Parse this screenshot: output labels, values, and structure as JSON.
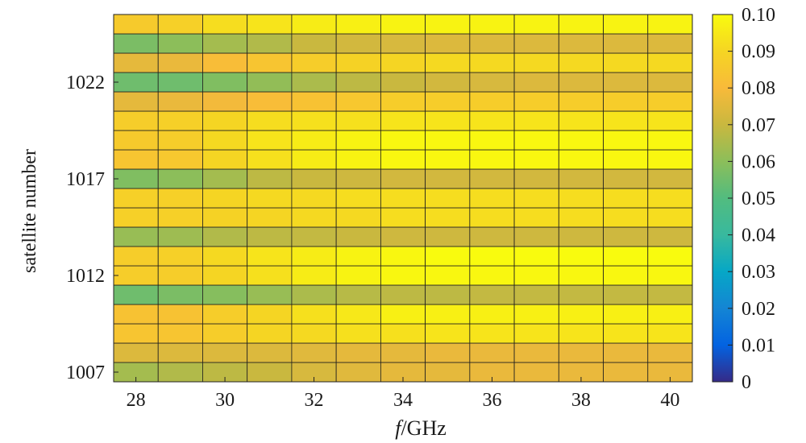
{
  "chart_data": {
    "type": "heatmap",
    "title": "",
    "xlabel_italic": "f",
    "xlabel_rest": "/GHz",
    "ylabel": "satellite number",
    "x": [
      28,
      29,
      30,
      31,
      32,
      33,
      34,
      35,
      36,
      37,
      38,
      39,
      40
    ],
    "x_ticks": [
      "28",
      "30",
      "32",
      "34",
      "36",
      "38",
      "40"
    ],
    "y": [
      1007,
      1008,
      1009,
      1010,
      1011,
      1012,
      1013,
      1014,
      1015,
      1016,
      1017,
      1018,
      1019,
      1020,
      1021,
      1022,
      1023,
      1024,
      1025
    ],
    "y_ticks": [
      "1007",
      "1012",
      "1017",
      "1022"
    ],
    "colorbar_ticks": [
      "0",
      "0.01",
      "0.02",
      "0.03",
      "0.04",
      "0.05",
      "0.06",
      "0.07",
      "0.08",
      "0.09",
      "0.10"
    ],
    "clim": [
      0,
      0.1
    ],
    "colormap": "parula",
    "values": [
      [
        0.064,
        0.066,
        0.068,
        0.07,
        0.073,
        0.075,
        0.076,
        0.076,
        0.077,
        0.077,
        0.077,
        0.077,
        0.077
      ],
      [
        0.074,
        0.074,
        0.074,
        0.074,
        0.075,
        0.076,
        0.076,
        0.077,
        0.077,
        0.077,
        0.077,
        0.077,
        0.077
      ],
      [
        0.084,
        0.084,
        0.087,
        0.09,
        0.091,
        0.093,
        0.093,
        0.094,
        0.094,
        0.094,
        0.094,
        0.094,
        0.094
      ],
      [
        0.083,
        0.083,
        0.087,
        0.09,
        0.093,
        0.095,
        0.097,
        0.097,
        0.097,
        0.097,
        0.097,
        0.097,
        0.097
      ],
      [
        0.055,
        0.057,
        0.059,
        0.062,
        0.065,
        0.067,
        0.068,
        0.068,
        0.069,
        0.069,
        0.069,
        0.069,
        0.069
      ],
      [
        0.087,
        0.087,
        0.09,
        0.093,
        0.096,
        0.098,
        0.099,
        0.099,
        0.099,
        0.099,
        0.099,
        0.099,
        0.099
      ],
      [
        0.087,
        0.088,
        0.091,
        0.094,
        0.096,
        0.098,
        0.099,
        0.1,
        0.1,
        0.1,
        0.1,
        0.1,
        0.1
      ],
      [
        0.062,
        0.063,
        0.066,
        0.068,
        0.069,
        0.07,
        0.071,
        0.071,
        0.071,
        0.071,
        0.071,
        0.071,
        0.071
      ],
      [
        0.088,
        0.088,
        0.089,
        0.09,
        0.091,
        0.091,
        0.092,
        0.092,
        0.092,
        0.092,
        0.092,
        0.092,
        0.092
      ],
      [
        0.088,
        0.088,
        0.09,
        0.091,
        0.091,
        0.092,
        0.092,
        0.092,
        0.092,
        0.092,
        0.092,
        0.092,
        0.092
      ],
      [
        0.058,
        0.06,
        0.064,
        0.068,
        0.07,
        0.071,
        0.072,
        0.072,
        0.072,
        0.072,
        0.072,
        0.072,
        0.072
      ],
      [
        0.084,
        0.085,
        0.09,
        0.093,
        0.096,
        0.098,
        0.099,
        0.099,
        0.099,
        0.099,
        0.099,
        0.099,
        0.099
      ],
      [
        0.086,
        0.087,
        0.091,
        0.094,
        0.096,
        0.098,
        0.099,
        0.099,
        0.099,
        0.099,
        0.099,
        0.099,
        0.099
      ],
      [
        0.087,
        0.088,
        0.09,
        0.092,
        0.093,
        0.093,
        0.094,
        0.094,
        0.094,
        0.094,
        0.094,
        0.094,
        0.094
      ],
      [
        0.076,
        0.077,
        0.079,
        0.081,
        0.083,
        0.085,
        0.087,
        0.087,
        0.087,
        0.087,
        0.087,
        0.087,
        0.087
      ],
      [
        0.055,
        0.055,
        0.058,
        0.061,
        0.065,
        0.068,
        0.07,
        0.072,
        0.073,
        0.074,
        0.074,
        0.074,
        0.074
      ],
      [
        0.076,
        0.077,
        0.081,
        0.084,
        0.087,
        0.089,
        0.09,
        0.091,
        0.091,
        0.091,
        0.091,
        0.091,
        0.091
      ],
      [
        0.057,
        0.06,
        0.064,
        0.066,
        0.07,
        0.072,
        0.073,
        0.074,
        0.074,
        0.074,
        0.074,
        0.074,
        0.074
      ],
      [
        0.086,
        0.088,
        0.092,
        0.094,
        0.096,
        0.097,
        0.098,
        0.098,
        0.098,
        0.098,
        0.098,
        0.098,
        0.098
      ]
    ]
  }
}
